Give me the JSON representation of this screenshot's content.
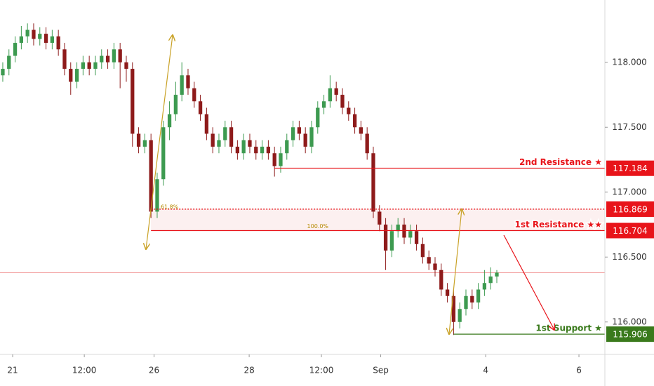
{
  "chart_data": {
    "type": "candlestick",
    "up_color": "#3d9a50",
    "down_color": "#8e1b1b",
    "xlim": [
      -0.45,
      97.5
    ],
    "xticks": [
      {
        "value": 1.6,
        "label": "21"
      },
      {
        "value": 13.2,
        "label": "12:00"
      },
      {
        "value": 24.5,
        "label": "26"
      },
      {
        "value": 39.9,
        "label": "28"
      },
      {
        "value": 51.6,
        "label": "12:00"
      },
      {
        "value": 61.2,
        "label": "Sep"
      },
      {
        "value": 78.2,
        "label": "4"
      },
      {
        "value": 93.3,
        "label": "6"
      }
    ],
    "ylim": [
      115.75,
      118.48
    ],
    "yticks": [
      {
        "value": 118,
        "label": "118.000"
      },
      {
        "value": 117.5,
        "label": "117.500"
      },
      {
        "value": 117,
        "label": "117.000"
      },
      {
        "value": 116.5,
        "label": "116.500"
      },
      {
        "value": 116,
        "label": "116.000"
      }
    ],
    "grid": false,
    "open": [
      117.9,
      117.95,
      118.05,
      118.15,
      118.2,
      118.25,
      118.18,
      118.22,
      118.15,
      118.2,
      118.1,
      117.95,
      117.85,
      117.95,
      118.0,
      117.95,
      118.0,
      118.05,
      118.0,
      118.1,
      118.0,
      117.95,
      117.45,
      117.35,
      117.4,
      116.85,
      117.1,
      117.5,
      117.6,
      117.75,
      117.9,
      117.8,
      117.7,
      117.6,
      117.45,
      117.35,
      117.4,
      117.5,
      117.35,
      117.3,
      117.4,
      117.35,
      117.3,
      117.35,
      117.3,
      117.2,
      117.3,
      117.4,
      117.5,
      117.45,
      117.35,
      117.5,
      117.65,
      117.7,
      117.8,
      117.75,
      117.65,
      117.6,
      117.5,
      117.45,
      117.3,
      116.85,
      116.75,
      116.55,
      116.7,
      116.75,
      116.65,
      116.7,
      116.6,
      116.5,
      116.45,
      116.4,
      116.25,
      116.2,
      116.0,
      116.1,
      116.2,
      116.15,
      116.25,
      116.3,
      116.35
    ],
    "high": [
      118.0,
      118.1,
      118.2,
      118.28,
      118.3,
      118.3,
      118.27,
      118.27,
      118.25,
      118.25,
      118.15,
      118.0,
      118.0,
      118.05,
      118.05,
      118.05,
      118.1,
      118.1,
      118.15,
      118.15,
      118.05,
      118.0,
      117.5,
      117.45,
      117.45,
      117.15,
      117.55,
      117.7,
      117.85,
      118.0,
      117.95,
      117.85,
      117.75,
      117.65,
      117.5,
      117.45,
      117.55,
      117.55,
      117.4,
      117.45,
      117.45,
      117.4,
      117.4,
      117.4,
      117.35,
      117.35,
      117.45,
      117.55,
      117.55,
      117.5,
      117.55,
      117.7,
      117.75,
      117.9,
      117.85,
      117.8,
      117.7,
      117.65,
      117.55,
      117.5,
      117.35,
      116.9,
      116.8,
      116.75,
      116.8,
      116.8,
      116.75,
      116.75,
      116.65,
      116.55,
      116.5,
      116.45,
      116.3,
      116.25,
      116.15,
      116.25,
      116.25,
      116.3,
      116.4,
      116.42,
      116.4
    ],
    "low": [
      117.85,
      117.9,
      118.0,
      118.1,
      118.15,
      118.13,
      118.13,
      118.1,
      118.1,
      118.05,
      117.9,
      117.75,
      117.8,
      117.9,
      117.9,
      117.9,
      117.95,
      117.95,
      117.95,
      117.8,
      117.85,
      117.35,
      117.3,
      117.3,
      116.8,
      116.8,
      117.05,
      117.4,
      117.55,
      117.7,
      117.75,
      117.65,
      117.55,
      117.4,
      117.3,
      117.3,
      117.35,
      117.3,
      117.25,
      117.25,
      117.3,
      117.25,
      117.25,
      117.25,
      117.12,
      117.15,
      117.25,
      117.35,
      117.4,
      117.3,
      117.3,
      117.45,
      117.6,
      117.65,
      117.7,
      117.6,
      117.55,
      117.45,
      117.4,
      117.25,
      116.8,
      116.7,
      116.4,
      116.5,
      116.65,
      116.6,
      116.6,
      116.55,
      116.45,
      116.4,
      116.35,
      116.2,
      116.15,
      115.9,
      115.95,
      116.05,
      116.1,
      116.1,
      116.2,
      116.25,
      116.3
    ],
    "close": [
      117.95,
      118.05,
      118.15,
      118.2,
      118.25,
      118.18,
      118.22,
      118.15,
      118.2,
      118.1,
      117.95,
      117.85,
      117.95,
      118.0,
      117.95,
      118.0,
      118.05,
      118.0,
      118.1,
      118.0,
      117.95,
      117.45,
      117.35,
      117.4,
      116.85,
      117.1,
      117.5,
      117.6,
      117.75,
      117.9,
      117.8,
      117.7,
      117.6,
      117.45,
      117.35,
      117.4,
      117.5,
      117.35,
      117.3,
      117.4,
      117.35,
      117.3,
      117.35,
      117.3,
      117.2,
      117.3,
      117.4,
      117.5,
      117.45,
      117.35,
      117.5,
      117.65,
      117.7,
      117.8,
      117.75,
      117.65,
      117.6,
      117.5,
      117.45,
      117.3,
      116.85,
      116.75,
      116.55,
      116.7,
      116.75,
      116.65,
      116.7,
      116.6,
      116.5,
      116.45,
      116.4,
      116.25,
      116.2,
      116.0,
      116.1,
      116.2,
      116.15,
      116.25,
      116.3,
      116.35,
      116.38
    ],
    "levels": [
      {
        "name": "2nd Resistance ★",
        "value": 117.184,
        "from": 44,
        "color": "#e8141a",
        "style": "solid"
      },
      {
        "value": 116.869,
        "from": 24,
        "color": "#e8141a",
        "style": "dotted"
      },
      {
        "name": "1st Resistance ★★",
        "value": 116.704,
        "from": 24,
        "color": "#e8141a",
        "style": "solid"
      },
      {
        "name": "1st Support ★",
        "value": 115.906,
        "from": 73,
        "color": "#3a7a1c",
        "style": "solid"
      }
    ],
    "annotations": [
      {
        "text": "61.8%",
        "x": 27,
        "y": 116.869
      },
      {
        "text": "100.0%",
        "x": 51,
        "y": 116.72
      }
    ]
  }
}
